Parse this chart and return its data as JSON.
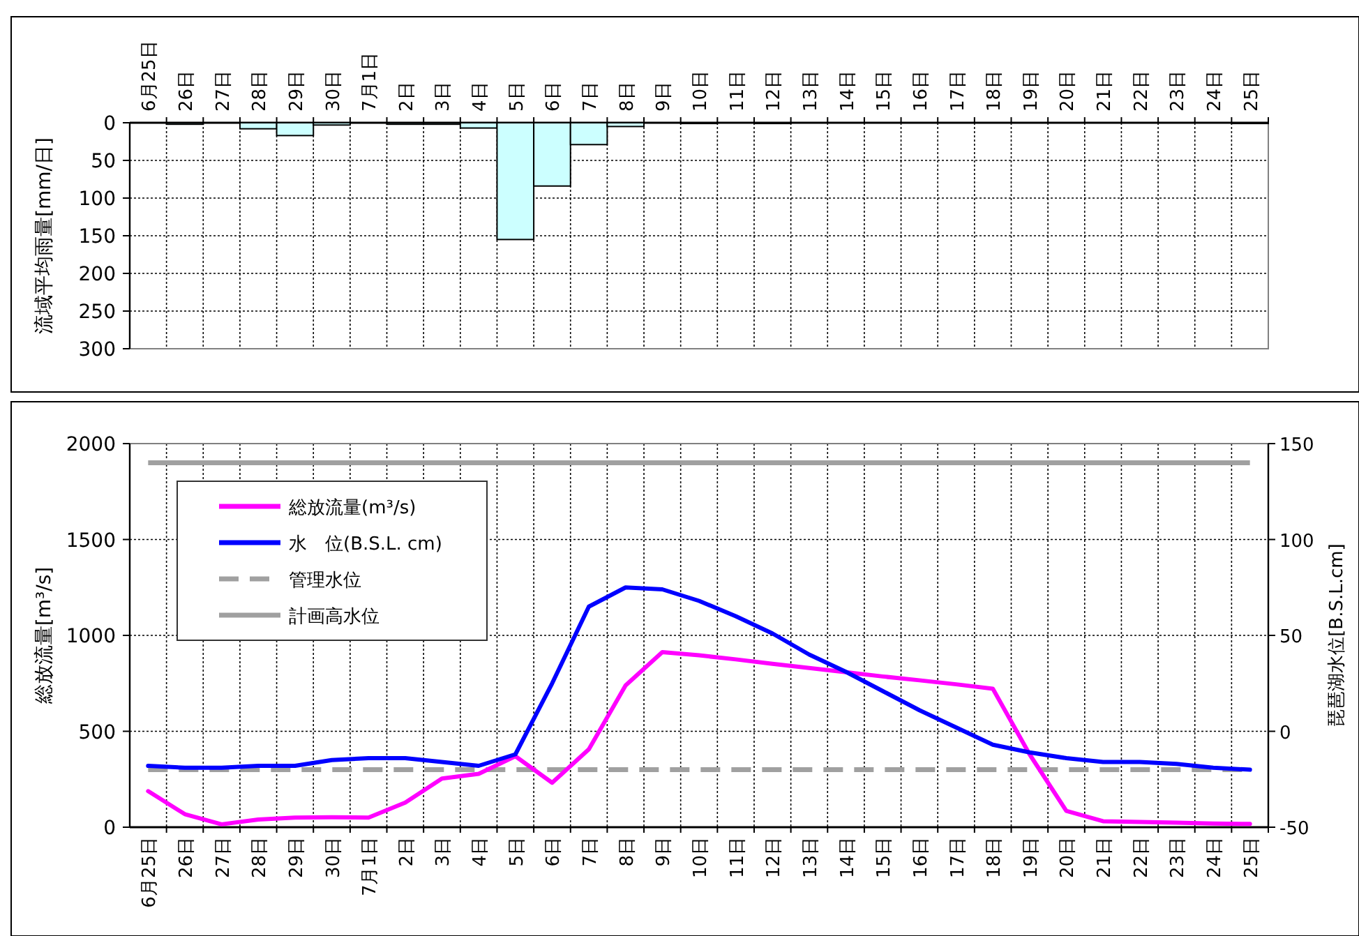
{
  "chart_data": [
    {
      "type": "bar",
      "ylabel": "流域平均雨量[mm/日]",
      "categories": [
        "6月25日",
        "26日",
        "27日",
        "28日",
        "29日",
        "30日",
        "7月1日",
        "2日",
        "3日",
        "4日",
        "5日",
        "6日",
        "7日",
        "8日",
        "9日",
        "10日",
        "11日",
        "12日",
        "13日",
        "14日",
        "15日",
        "16日",
        "17日",
        "18日",
        "19日",
        "20日",
        "21日",
        "22日",
        "23日",
        "24日",
        "25日"
      ],
      "values": [
        0,
        2,
        0,
        8,
        17,
        3,
        0,
        2,
        2,
        7,
        155,
        84,
        29,
        5,
        0,
        1,
        0,
        1,
        0,
        0,
        0,
        0,
        0,
        0,
        0,
        0,
        0,
        0,
        0,
        0,
        1
      ],
      "color": "#ccffff",
      "ylim": [
        300,
        0
      ],
      "yticks": [
        0,
        50,
        100,
        150,
        200,
        250,
        300
      ],
      "grid": true
    },
    {
      "type": "line",
      "ylabel": "総放流量[m³/s]",
      "y2label": "琵琶湖水位[B.S.L.cm]",
      "categories": [
        "6月25日",
        "26日",
        "27日",
        "28日",
        "29日",
        "30日",
        "7月1日",
        "2日",
        "3日",
        "4日",
        "5日",
        "6日",
        "7日",
        "8日",
        "9日",
        "10日",
        "11日",
        "12日",
        "13日",
        "14日",
        "15日",
        "16日",
        "17日",
        "18日",
        "19日",
        "20日",
        "21日",
        "22日",
        "23日",
        "24日",
        "25日"
      ],
      "series": [
        {
          "name": "総放流量(m³/s)",
          "color": "#ff00ff",
          "values": [
            188,
            68,
            15,
            40,
            50,
            52,
            50,
            128,
            254,
            278,
            370,
            232,
            406,
            739,
            913,
            896,
            875,
            852,
            830,
            808,
            786,
            766,
            745,
            722,
            380,
            85,
            31,
            27,
            24,
            19,
            17
          ]
        },
        {
          "name": "水　位(B.S.L. cm)",
          "color": "#0000ff",
          "axis": "y2",
          "values": [
            -18,
            -19,
            -19,
            -18,
            -18,
            -15,
            -14,
            -14,
            -16,
            -18,
            -12,
            25,
            65,
            75,
            74,
            68,
            60,
            51,
            40,
            31,
            21,
            11,
            2,
            -7,
            -11,
            -14,
            -16,
            -16,
            -17,
            -19,
            -20
          ]
        }
      ],
      "ref_lines": [
        {
          "axis": "y2",
          "value": -20,
          "label": "管理水位",
          "color": "#a0a0a0",
          "line_style": "dashed"
        },
        {
          "axis": "y2",
          "value": 140,
          "label": "計画高水位",
          "color": "#a0a0a0",
          "line_style": "solid"
        }
      ],
      "ylim": [
        0,
        2000
      ],
      "yticks": [
        0,
        500,
        1000,
        1500,
        2000
      ],
      "y2lim": [
        -50,
        150
      ],
      "y2ticks": [
        -50,
        0,
        50,
        100,
        150
      ],
      "grid": true,
      "legend": "top left"
    }
  ]
}
